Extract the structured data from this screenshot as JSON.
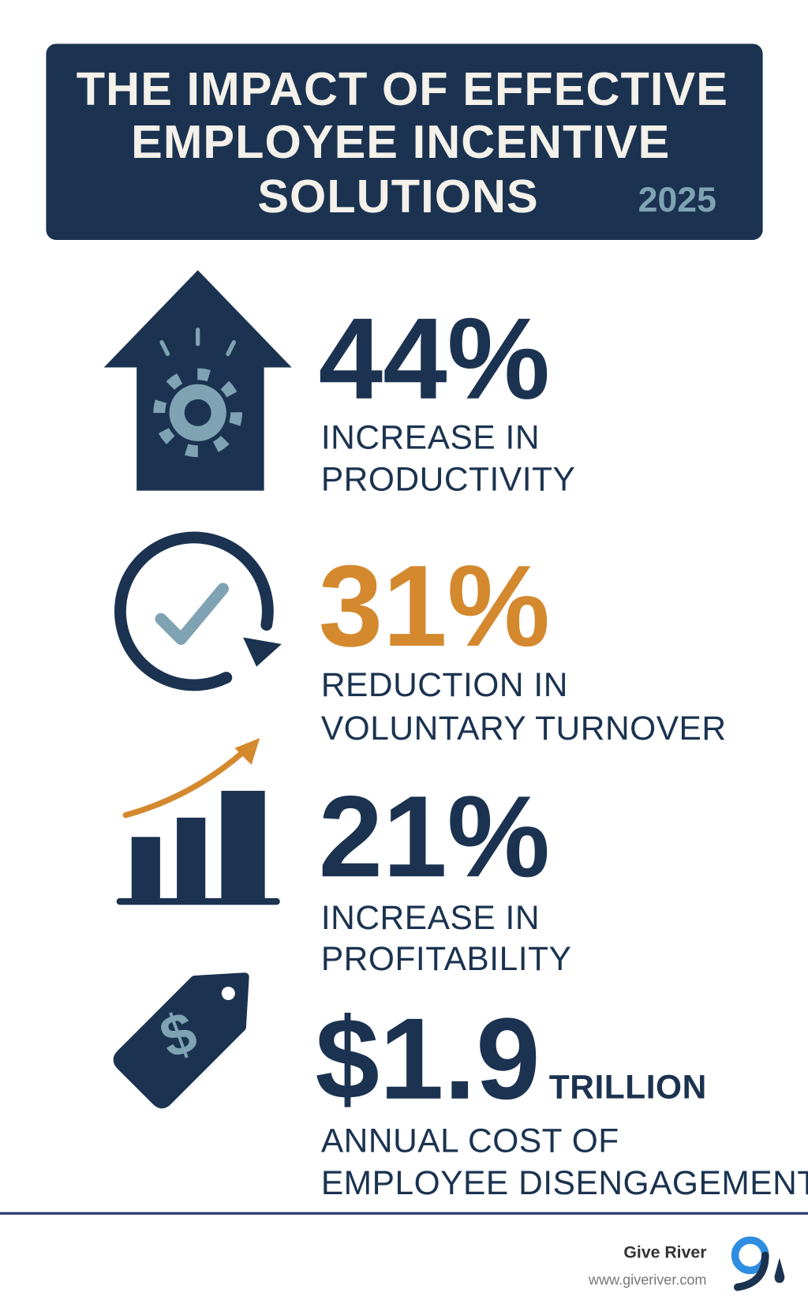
{
  "header": {
    "title": [
      "THE IMPACT OF EFFECTIVE",
      "EMPLOYEE INCENTIVE",
      "SOLUTIONS"
    ],
    "year": "2025"
  },
  "stats": [
    {
      "value": "44%",
      "description": [
        "INCREASE IN",
        "PRODUCTIVITY"
      ]
    },
    {
      "value": "31%",
      "description": [
        "REDUCTION IN",
        "VOLUNTARY TURNOVER"
      ]
    },
    {
      "value": "21%",
      "description": [
        "INCREASE IN",
        "PROFITABILITY"
      ]
    },
    {
      "value": "$1.9",
      "unit": "TRILLION",
      "description": [
        "ANNUAL COST OF",
        "EMPLOYEE DISENGAGEMENT"
      ]
    }
  ],
  "footer": {
    "brand": "Give River",
    "url": "www.giveriver.com"
  }
}
